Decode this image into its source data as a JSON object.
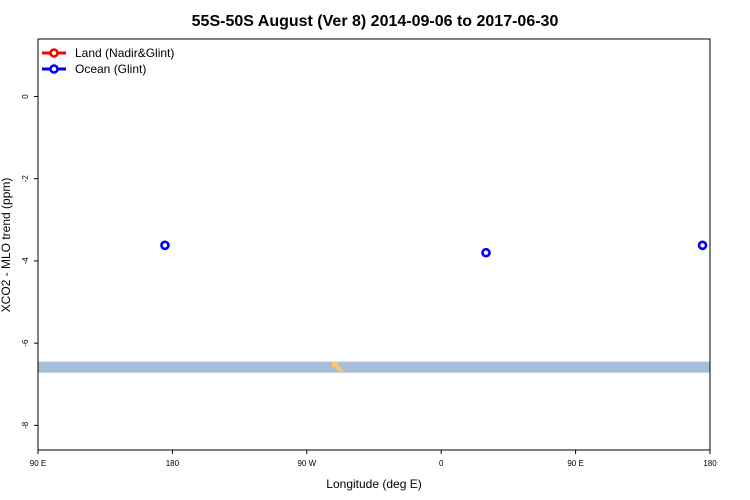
{
  "chart_data": {
    "type": "scatter",
    "title": "55S-50S August (Ver 8)   2014-09-06 to 2017-06-30",
    "xlabel": "Longitude (deg E)",
    "ylabel": "XCO2 - MLO trend (ppm)",
    "x_ticks": [
      {
        "value": 90,
        "label": "90 E"
      },
      {
        "value": 180,
        "label": "180"
      },
      {
        "value": 270,
        "label": "90 W"
      },
      {
        "value": 360,
        "label": "0"
      },
      {
        "value": 450,
        "label": "90 E"
      },
      {
        "value": 540,
        "label": "180"
      }
    ],
    "y_ticks": [
      {
        "value": 0,
        "label": "0"
      },
      {
        "value": -2,
        "label": "-2"
      },
      {
        "value": -4,
        "label": "-4"
      },
      {
        "value": -6,
        "label": "-6"
      },
      {
        "value": -8,
        "label": "-8"
      }
    ],
    "xlim": [
      90,
      540
    ],
    "ylim": [
      -8.6,
      1.4
    ],
    "grid": false,
    "legend": {
      "placement": "top-left",
      "entries": [
        {
          "name": "Land (Nadir&Glint)",
          "color": "#ff0000"
        },
        {
          "name": "Ocean (Glint)",
          "color": "#0000ff"
        }
      ]
    },
    "series": [
      {
        "name": "Land (Nadir&Glint)",
        "color": "#ff0000",
        "points": []
      },
      {
        "name": "Ocean (Glint)",
        "color": "#0000ff",
        "points": [
          {
            "x": 175,
            "y": -3.62
          },
          {
            "x": 390,
            "y": -3.8
          },
          {
            "x": 535,
            "y": -3.62
          }
        ]
      }
    ],
    "map_strip": {
      "color": "#a8bedb",
      "land_color": "#f5c872",
      "y_range": [
        -6.72,
        -6.45
      ]
    }
  }
}
